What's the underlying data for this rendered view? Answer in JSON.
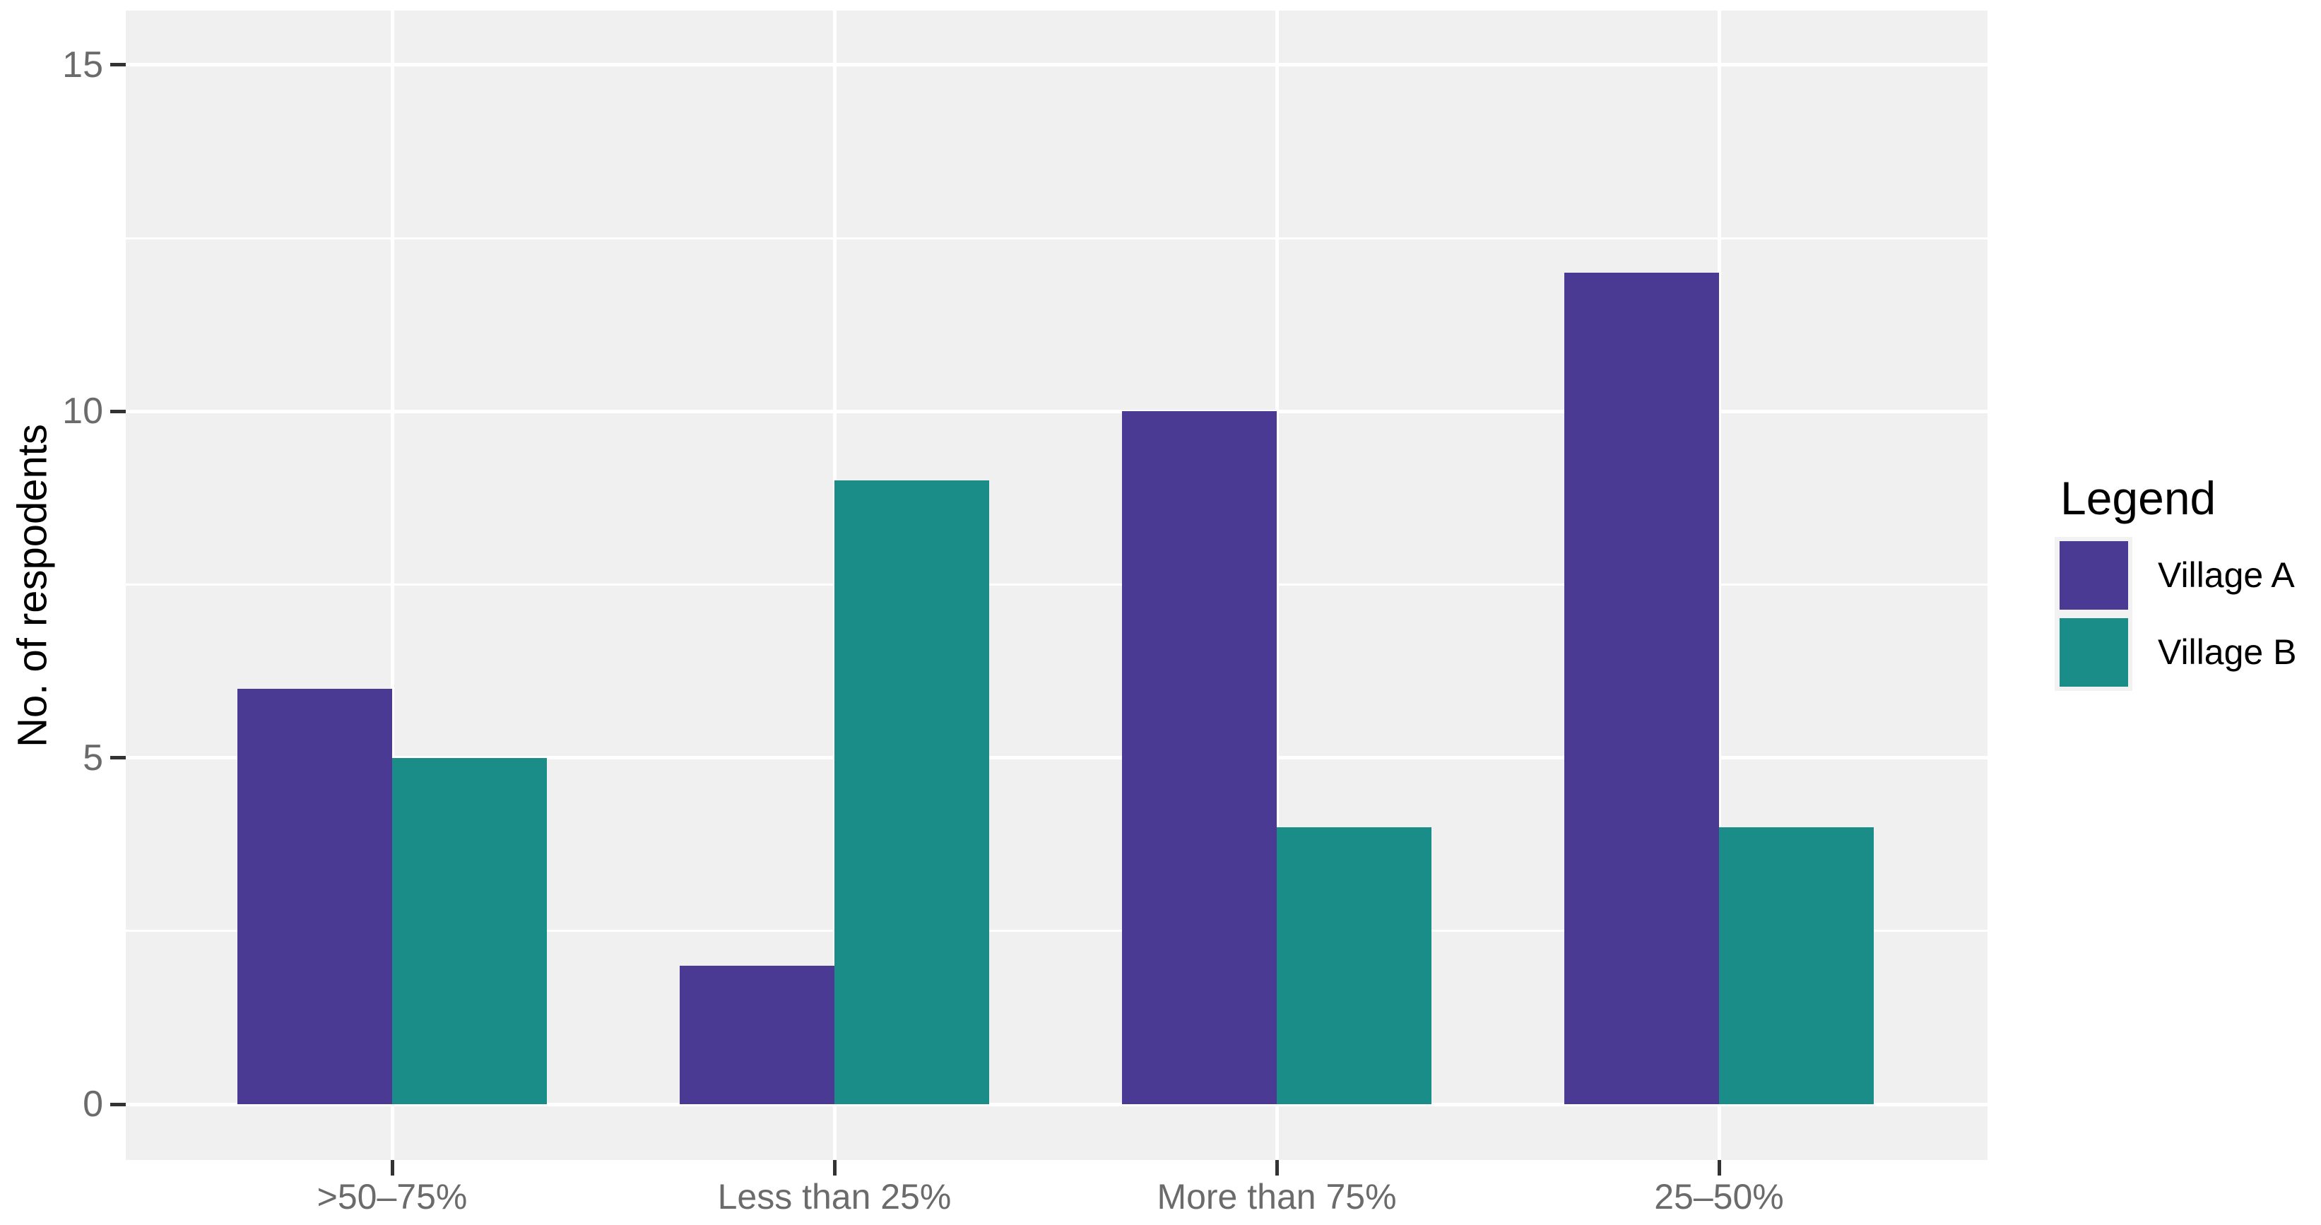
{
  "chart_data": {
    "type": "bar",
    "bar_mode": "dodge",
    "title": "",
    "xlabel": "",
    "ylabel": "No. of respodents",
    "categories": [
      ">50–75%",
      "Less than 25%",
      "More than 75%",
      "25–50%"
    ],
    "series": [
      {
        "name": "Village A",
        "color": "#4B3A94",
        "values": [
          6,
          2,
          10,
          12
        ]
      },
      {
        "name": "Village B",
        "color": "#1B8D89",
        "values": [
          5,
          9,
          4,
          4
        ]
      }
    ],
    "ylim": [
      -0.8,
      15.8
    ],
    "yticks_major": [
      0,
      5,
      10,
      15
    ],
    "yticks_minor": [
      2.5,
      7.5,
      12.5
    ],
    "ytick_labels": [
      "0",
      "5",
      "10",
      "15"
    ],
    "grid": "white gridlines on gray panel, horizontal majors and minors, vertical at category centers",
    "legend_title": "Legend",
    "legend_position": "right"
  },
  "colors": {
    "panel_bg": "#F0F0F0",
    "grid": "#FFFFFF",
    "axis_text": "#6B6B6B",
    "axis_title": "#000000",
    "tick_mark": "#333333",
    "village_a": "#4B3A94",
    "village_b": "#1B8D89",
    "legend_key_bg": "#F2F2F2",
    "page_bg": "#FFFFFF"
  }
}
